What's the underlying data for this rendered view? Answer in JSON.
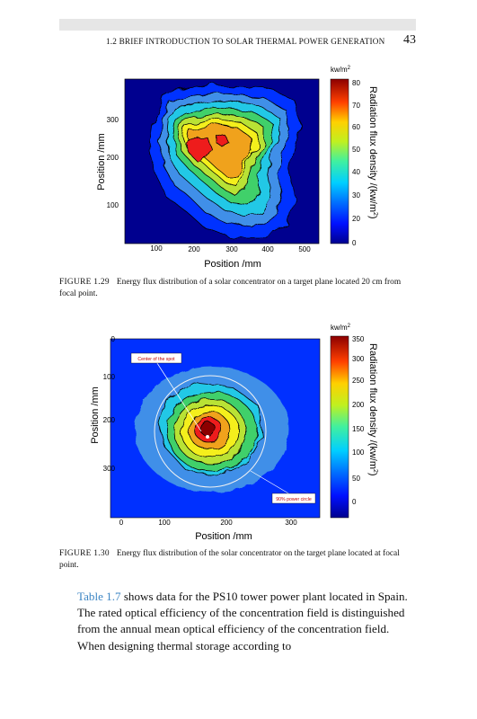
{
  "header": {
    "running_head": "1.2 BRIEF INTRODUCTION TO SOLAR THERMAL POWER GENERATION",
    "page_number": "43"
  },
  "figure1": {
    "xlabel": "Position /mm",
    "ylabel": "Position /mm",
    "x_ticks": [
      "100",
      "200",
      "300",
      "400",
      "500"
    ],
    "y_ticks": [
      "300",
      "200",
      "100"
    ],
    "unit": "kw/m",
    "unit_exp": "2",
    "colorbar_ticks": [
      "80",
      "70",
      "60",
      "50",
      "40",
      "30",
      "20",
      "0"
    ],
    "colorbar_label": "Radiation flux density /(kw/m",
    "colorbar_label_exp": "2",
    "colorbar_label_close": ")",
    "caption_label": "FIGURE 1.29",
    "caption_text": "Energy flux distribution of a solar concentrator on a target plane located 20 cm from focal point."
  },
  "figure2": {
    "xlabel": "Position /mm",
    "ylabel": "Position /mm",
    "x_ticks": [
      "0",
      "100",
      "200",
      "300"
    ],
    "y_ticks": [
      "0",
      "100",
      "200",
      "300"
    ],
    "unit": "kw/m",
    "unit_exp": "2",
    "colorbar_ticks": [
      "350",
      "300",
      "250",
      "200",
      "150",
      "100",
      "50",
      "0"
    ],
    "colorbar_label": "Radiation flux density /(kw/m",
    "colorbar_label_exp": "2",
    "colorbar_label_close": ")",
    "annotation_center": "Center of the spot",
    "annotation_circle": "90% power circle",
    "caption_label": "FIGURE 1.30",
    "caption_text": "Energy flux distribution of the solar concentrator on the target plane located at focal point."
  },
  "body": {
    "link_text": "Table 1.7",
    "paragraph_rest": " shows data for the PS10 tower power plant located in Spain. The rated optical efficiency of the concentration field is distinguished from the annual mean optical efficiency of the concentration field. When designing thermal storage according to"
  },
  "colors": {
    "dark_blue": "#00008f",
    "blue": "#0030ff",
    "light_blue": "#3f8fe8",
    "cyan": "#22c8e6",
    "green": "#3fd06a",
    "yellow_green": "#b9e234",
    "yellow": "#f4ef1c",
    "orange": "#f0a21c",
    "red": "#ee1c1c",
    "dark_red": "#8c0000",
    "link": "#3d86c4"
  }
}
